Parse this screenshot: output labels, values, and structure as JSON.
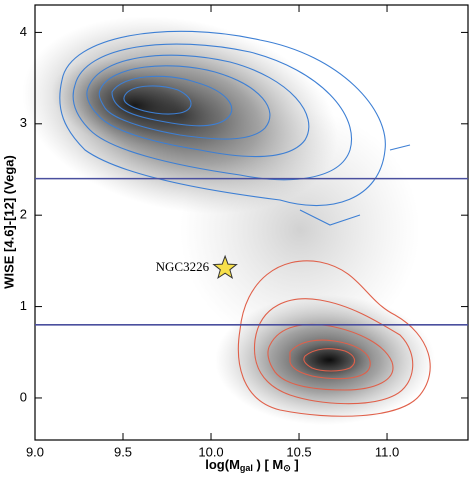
{
  "chart_data": {
    "type": "contour",
    "xlabel": [
      "log(M",
      "gal",
      " ) [ M",
      "⊙",
      " ]"
    ],
    "ylabel": "WISE [4.6]-[12] (Vega)",
    "xlim": [
      9.0,
      11.46
    ],
    "ylim": [
      -0.46,
      4.3
    ],
    "xticks": [
      {
        "value": 9,
        "label": "9.0"
      },
      9.5,
      {
        "value": 10,
        "label": "10.0"
      },
      10.5,
      {
        "value": 11,
        "label": "11.0"
      }
    ],
    "yticks": [
      0,
      1,
      2,
      3,
      4
    ],
    "hlines": [
      2.4,
      0.8
    ],
    "hline_color": "#4a4f9e",
    "marker": {
      "x": 10.08,
      "y": 1.42,
      "label": "NGC3226",
      "color": "#f7e04a"
    }
  }
}
